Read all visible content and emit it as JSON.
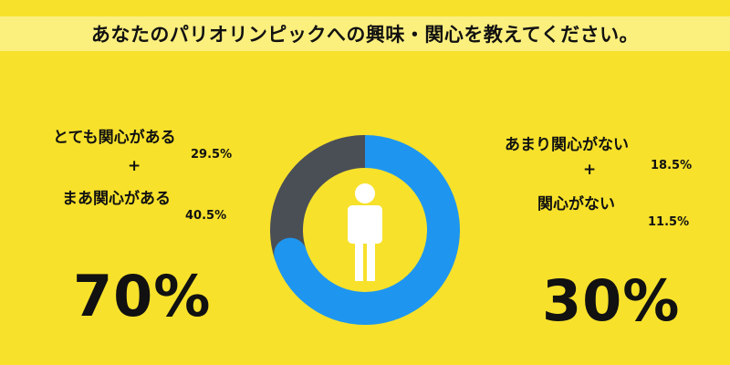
{
  "title": "あなたのパリオリンピックへの興味・関心を教えてください。",
  "colors": {
    "background": "#f7e12b",
    "title_band": "#fbef7e",
    "interested": "#1e96f0",
    "not_interested": "#4a4f56",
    "figure": "#ffffff"
  },
  "icons": [
    "person-icon"
  ],
  "plus_sign": "+",
  "left": {
    "total_label": "70%"
  },
  "right": {
    "total_label": "30%"
  },
  "chart_data": {
    "type": "pie",
    "style": "donut",
    "title": "あなたのパリオリンピックへの興味・関心を教えてください。",
    "categories": [
      "とても関心がある",
      "まあ関心がある",
      "あまり関心がない",
      "関心がない"
    ],
    "values": [
      29.5,
      40.5,
      18.5,
      11.5
    ],
    "value_labels": [
      "29.5%",
      "40.5%",
      "18.5%",
      "11.5%"
    ],
    "groups": [
      {
        "name": "関心がある",
        "members": [
          "とても関心がある",
          "まあ関心がある"
        ],
        "value": 70,
        "label": "70%",
        "color": "#1e96f0"
      },
      {
        "name": "関心がない",
        "members": [
          "あまり関心がない",
          "関心がない"
        ],
        "value": 30,
        "label": "30%",
        "color": "#4a4f56"
      }
    ],
    "legend": "none"
  }
}
